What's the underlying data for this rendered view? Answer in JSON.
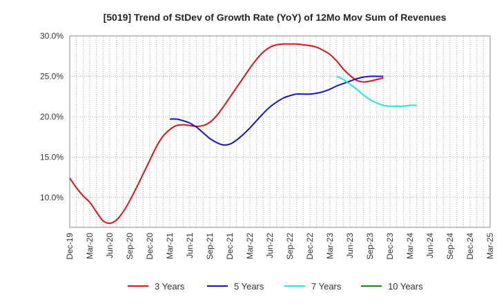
{
  "chart_data": {
    "type": "line",
    "title": "[5019]  Trend of StDev of Growth Rate (YoY) of 12Mo Mov Sum of Revenues",
    "xlabel": "",
    "ylabel": "",
    "ylim": [
      6.3,
      30.0
    ],
    "y_ticks": [
      10.0,
      15.0,
      20.0,
      25.0,
      30.0
    ],
    "y_tick_labels": [
      "10.0%",
      "15.0%",
      "20.0%",
      "25.0%",
      "30.0%"
    ],
    "x_tick_labels": [
      "Dec-19",
      "Mar-20",
      "Jun-20",
      "Sep-20",
      "Dec-20",
      "Mar-21",
      "Jun-21",
      "Sep-21",
      "Dec-21",
      "Mar-22",
      "Jun-22",
      "Sep-22",
      "Dec-22",
      "Mar-23",
      "Jun-23",
      "Sep-23",
      "Dec-23",
      "Mar-24",
      "Jun-24",
      "Sep-24",
      "Dec-24",
      "Mar-25"
    ],
    "series": [
      {
        "name": "3 Years",
        "color": "#dd1111",
        "start_index": 0,
        "values": [
          12.4,
          11.2,
          10.2,
          9.4,
          8.2,
          7.1,
          6.8,
          7.2,
          8.2,
          9.6,
          11.2,
          12.9,
          14.6,
          16.3,
          17.6,
          18.4,
          18.9,
          19.0,
          18.9,
          18.8,
          18.9,
          19.3,
          20.1,
          21.2,
          22.4,
          23.6,
          24.8,
          26.0,
          27.1,
          28.0,
          28.6,
          28.9,
          29.0,
          29.0,
          29.0,
          28.9,
          28.8,
          28.6,
          28.2,
          27.7,
          26.9,
          25.9,
          25.1,
          24.5,
          24.3,
          24.4,
          24.6,
          24.8
        ]
      },
      {
        "name": "5 Years",
        "color": "#1111cc",
        "start_index": 15,
        "values": [
          19.7,
          19.7,
          19.5,
          19.2,
          18.7,
          18.0,
          17.3,
          16.8,
          16.5,
          16.6,
          17.1,
          17.8,
          18.6,
          19.5,
          20.4,
          21.2,
          21.8,
          22.3,
          22.6,
          22.8,
          22.8,
          22.8,
          22.9,
          23.1,
          23.4,
          23.8,
          24.1,
          24.4,
          24.7,
          24.9,
          25.0,
          25.0,
          25.0
        ]
      },
      {
        "name": "7 Years",
        "color": "#22e5e5",
        "start_index": 40,
        "values": [
          25.0,
          24.6,
          24.0,
          23.4,
          22.7,
          22.1,
          21.7,
          21.4,
          21.3,
          21.3,
          21.3,
          21.4,
          21.4
        ]
      },
      {
        "name": "10 Years",
        "color": "#118811",
        "start_index": 0,
        "values": []
      }
    ],
    "grid": true,
    "legend_position": "bottom"
  }
}
